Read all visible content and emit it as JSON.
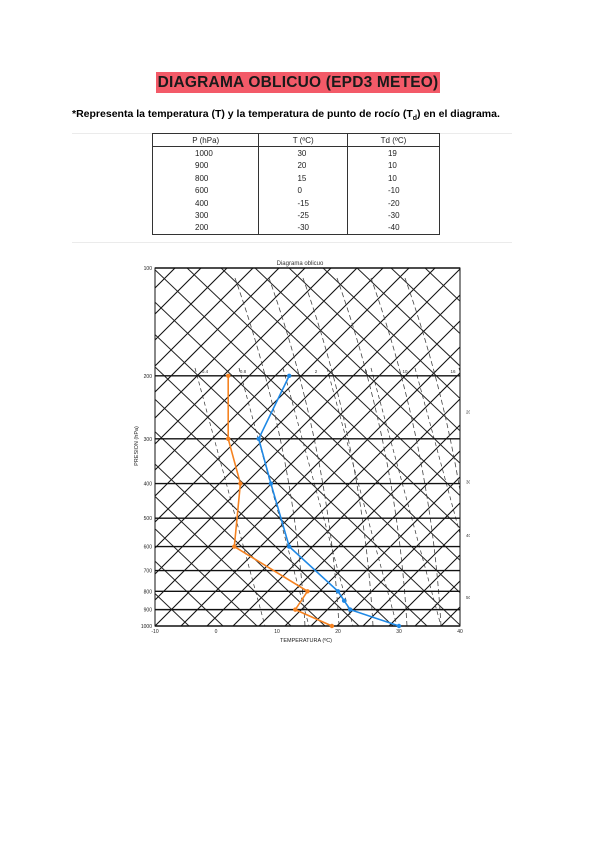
{
  "header": {
    "title": "DIAGRAMA OBLICUO (EPD3 METEO)",
    "instruction_pre": "*Representa la temperatura (T) y la temperatura de punto de rocío (T",
    "instruction_sub": "d",
    "instruction_post": ") en el diagrama."
  },
  "table": {
    "headers": [
      "P (hPa)",
      "T (ºC)",
      "Td (ºC)"
    ],
    "rows": [
      [
        "1000",
        "30",
        "19"
      ],
      [
        "900",
        "20",
        "10"
      ],
      [
        "800",
        "15",
        "10"
      ],
      [
        "600",
        "0",
        "-10"
      ],
      [
        "400",
        "-15",
        "-20"
      ],
      [
        "300",
        "-25",
        "-30"
      ],
      [
        "200",
        "-30",
        "-40"
      ]
    ]
  },
  "diagram": {
    "title": "Diagrama oblicuo",
    "xlabel": "TEMPERATURA (ºC)",
    "ylabel": "PRESION (hPa)",
    "x_ticks": [
      "-10",
      "0",
      "10",
      "20",
      "30",
      "40"
    ],
    "y_ticks": [
      "100",
      "200",
      "300",
      "400",
      "500",
      "600",
      "700",
      "800",
      "900",
      "1000"
    ],
    "mixing_ratio_labels": [
      "0.4",
      "0.8",
      "2",
      "5",
      "10",
      "16"
    ],
    "right_labels": [
      "20",
      "30",
      "40",
      "50"
    ]
  },
  "chart_data": {
    "type": "line",
    "title": "Diagrama oblicuo",
    "xlabel": "TEMPERATURA (ºC)",
    "ylabel": "PRESION (hPa)",
    "xlim": [
      -10,
      40
    ],
    "ylim": [
      1000,
      100
    ],
    "y_scale": "log",
    "series": [
      {
        "color": "#1e88e5",
        "points": [
          {
            "pressure": 1000,
            "value": 30
          },
          {
            "pressure": 900,
            "value": 22
          },
          {
            "pressure": 850,
            "value": 21
          },
          {
            "pressure": 800,
            "value": 20
          },
          {
            "pressure": 600,
            "value": 12
          },
          {
            "pressure": 400,
            "value": 9
          },
          {
            "pressure": 300,
            "value": 7
          },
          {
            "pressure": 200,
            "value": 12
          }
        ]
      },
      {
        "color": "#f58220",
        "points": [
          {
            "pressure": 1000,
            "value": 19
          },
          {
            "pressure": 900,
            "value": 13
          },
          {
            "pressure": 800,
            "value": 15
          },
          {
            "pressure": 600,
            "value": 3
          },
          {
            "pressure": 400,
            "value": 4
          },
          {
            "pressure": 300,
            "value": 2
          },
          {
            "pressure": 200,
            "value": 2
          }
        ]
      }
    ]
  }
}
